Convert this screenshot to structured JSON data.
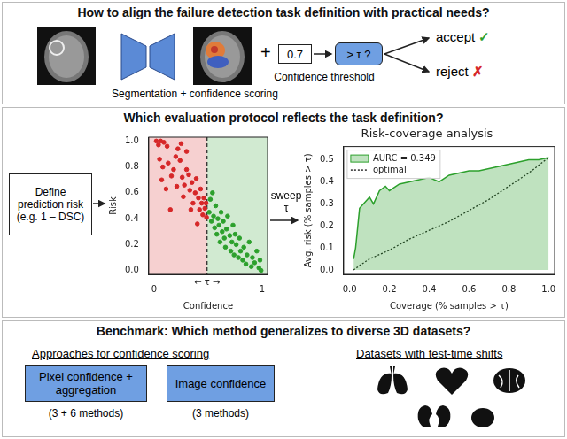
{
  "panels": [
    {
      "title": "How to align the failure detection task definition with practical needs?",
      "segmentation_label": "Segmentation + confidence scoring",
      "plus": "+",
      "confidence": 0.7,
      "threshold_test": "> τ ?",
      "threshold_label": "Confidence threshold",
      "accept": "accept",
      "accept_mark": "✓",
      "reject": "reject",
      "reject_mark": "✗"
    },
    {
      "title": "Which evaluation protocol reflects the task definition?",
      "risk_box": [
        "Define",
        "prediction risk",
        "(e.g. 1 – DSC)"
      ],
      "sweep": "sweep τ"
    },
    {
      "title": "Benchmark: Which method generalizes to diverse 3D datasets?",
      "approaches_heading": "Approaches for confidence scoring",
      "approaches": [
        {
          "label": "Pixel confidence + aggregation",
          "count": "(3 + 6 methods)"
        },
        {
          "label": "Image confidence",
          "count": "(3 methods)"
        }
      ],
      "datasets_heading": "Datasets with test-time shifts"
    }
  ],
  "chart_data": [
    {
      "type": "scatter",
      "x_label": "Confidence",
      "y_label": "Risk",
      "xlim": [
        -0.05,
        1.05
      ],
      "ylim": [
        -0.03,
        1.03
      ],
      "xticks": [
        0,
        1
      ],
      "yticks": [
        {
          "value": 0,
          "label": "0.0"
        },
        {
          "value": 0.2,
          "label": "0.2"
        },
        {
          "value": 0.4,
          "label": "0.4"
        },
        {
          "value": 0.6,
          "label": "0.6"
        },
        {
          "value": 0.8,
          "label": "0.8"
        },
        {
          "value": 1,
          "label": "1.0"
        }
      ],
      "threshold": 0.49,
      "threshold_label": "← τ →",
      "grid": false,
      "series": [
        {
          "color": "#d62728",
          "marker": "circle",
          "x": [
            0.02,
            0.04,
            0.06,
            0.09,
            0.12,
            0.05,
            0.08,
            0.13,
            0.16,
            0.18,
            0.2,
            0.22,
            0.24,
            0.26,
            0.21,
            0.28,
            0.3,
            0.32,
            0.33,
            0.35,
            0.36,
            0.38,
            0.39,
            0.41,
            0.42,
            0.43,
            0.44,
            0.45,
            0.46,
            0.47,
            0.48,
            0.485,
            0.27,
            0.34,
            0.15,
            0.4,
            0.07,
            0.11,
            0.25,
            0.3
          ],
          "values": [
            1.0,
            0.97,
            1.0,
            0.99,
            0.96,
            0.86,
            0.8,
            0.83,
            0.73,
            0.78,
            0.88,
            0.94,
            0.85,
            0.72,
            0.65,
            0.66,
            0.78,
            0.74,
            0.62,
            0.68,
            0.52,
            0.6,
            0.71,
            0.56,
            0.47,
            0.63,
            0.52,
            0.43,
            0.56,
            0.48,
            0.52,
            0.41,
            0.57,
            0.47,
            0.47,
            0.36,
            0.7,
            0.63,
            0.98,
            0.92
          ]
        },
        {
          "color": "#2ca02c",
          "marker": "circle",
          "x": [
            0.51,
            0.52,
            0.53,
            0.54,
            0.55,
            0.56,
            0.57,
            0.58,
            0.59,
            0.6,
            0.61,
            0.62,
            0.63,
            0.64,
            0.65,
            0.66,
            0.67,
            0.68,
            0.7,
            0.71,
            0.72,
            0.73,
            0.74,
            0.75,
            0.76,
            0.78,
            0.79,
            0.8,
            0.82,
            0.83,
            0.85,
            0.86,
            0.88,
            0.9,
            0.91,
            0.93,
            0.95,
            0.97,
            0.98,
            0.99
          ],
          "values": [
            0.45,
            0.55,
            0.38,
            0.6,
            0.42,
            0.33,
            0.5,
            0.28,
            0.4,
            0.35,
            0.22,
            0.45,
            0.3,
            0.38,
            0.25,
            0.18,
            0.32,
            0.42,
            0.27,
            0.15,
            0.22,
            0.35,
            0.12,
            0.28,
            0.2,
            0.1,
            0.25,
            0.15,
            0.08,
            0.18,
            0.05,
            0.12,
            0.22,
            0.03,
            0.1,
            0.06,
            0.15,
            0.02,
            0.08,
            0.0
          ]
        }
      ]
    },
    {
      "type": "line",
      "title": "Risk-coverage analysis",
      "x_label": "Coverage (% samples > τ)",
      "y_label": "Avg. risk (% samples > τ)",
      "xlim": [
        -0.03,
        1.03
      ],
      "ylim": [
        -0.02,
        0.56
      ],
      "xticks": [
        {
          "value": 0,
          "label": "0.0"
        },
        {
          "value": 0.2,
          "label": "0.2"
        },
        {
          "value": 0.4,
          "label": "0.4"
        },
        {
          "value": 0.6,
          "label": "0.6"
        },
        {
          "value": 0.8,
          "label": "0.8"
        },
        {
          "value": 1,
          "label": "1.0"
        }
      ],
      "yticks": [
        {
          "value": 0,
          "label": "0.0"
        },
        0.1,
        0.2,
        0.3,
        0.4,
        0.5
      ],
      "grid": false,
      "legend": "upper left",
      "series": [
        {
          "name": "AURC = 0.349",
          "type": "area",
          "color": "#2ca02c",
          "line_style": "solid",
          "x": [
            0.02,
            0.03,
            0.05,
            0.07,
            0.1,
            0.12,
            0.15,
            0.18,
            0.2,
            0.25,
            0.3,
            0.35,
            0.4,
            0.45,
            0.5,
            0.55,
            0.6,
            0.65,
            0.7,
            0.75,
            0.8,
            0.85,
            0.9,
            0.95,
            1.0
          ],
          "values": [
            0.05,
            0.1,
            0.28,
            0.3,
            0.33,
            0.3,
            0.36,
            0.38,
            0.36,
            0.39,
            0.4,
            0.41,
            0.42,
            0.4,
            0.43,
            0.44,
            0.45,
            0.45,
            0.46,
            0.47,
            0.48,
            0.49,
            0.5,
            0.5,
            0.51
          ]
        },
        {
          "name": "optimal",
          "type": "line",
          "color": "#222222",
          "line_style": "dotted",
          "x": [
            0.02,
            0.05,
            0.1,
            0.2,
            0.3,
            0.4,
            0.5,
            0.6,
            0.7,
            0.8,
            0.9,
            1.0
          ],
          "values": [
            0.0,
            0.02,
            0.05,
            0.09,
            0.14,
            0.18,
            0.22,
            0.27,
            0.32,
            0.38,
            0.44,
            0.51
          ]
        }
      ]
    }
  ]
}
